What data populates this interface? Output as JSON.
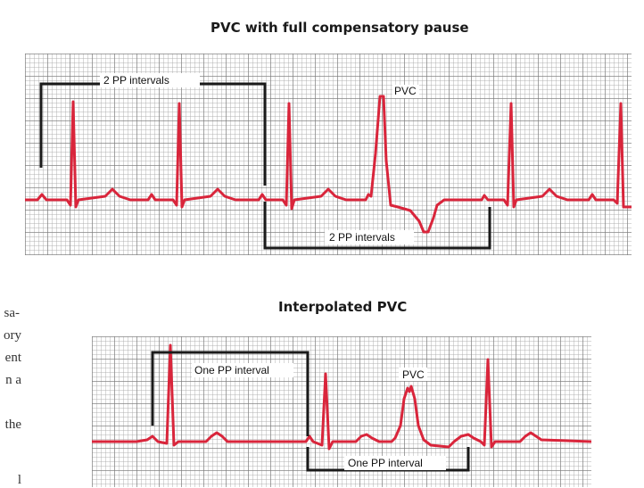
{
  "diagram1": {
    "title": "PVC with full compensatory pause",
    "label_top": "2 PP intervals",
    "label_pvc": "PVC",
    "label_bottom": "2 PP intervals"
  },
  "diagram2": {
    "title": "Interpolated PVC",
    "label_top": "One PP interval",
    "label_pvc": "PVC",
    "label_bottom": "One PP interval"
  },
  "background_text": [
    "sa-",
    "ory",
    "ent",
    "n a",
    "the",
    "l"
  ],
  "colors": {
    "ecg_trace": "#d9253b",
    "bracket": "#1a1a1a",
    "grid": "#8a8a8a"
  }
}
